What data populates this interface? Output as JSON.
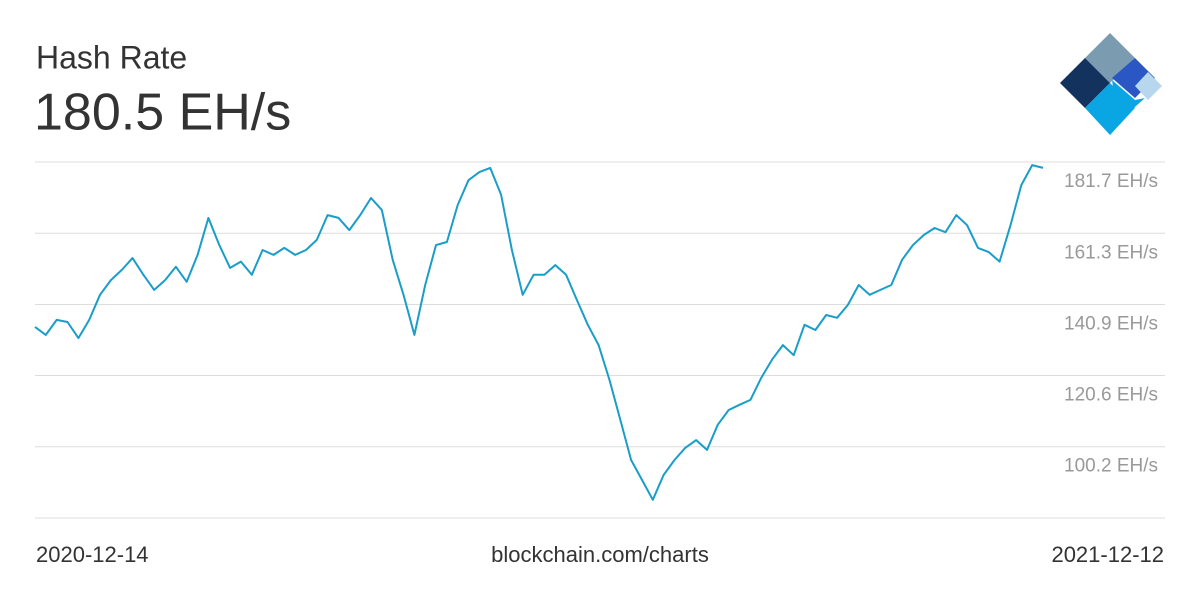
{
  "chart_data": {
    "type": "line",
    "title": "Hash Rate",
    "subtitle": "180.5 EH/s",
    "source": "blockchain.com/charts",
    "x_labels": [
      "2020-12-14",
      "2021-12-12"
    ],
    "series": [
      {
        "name": "Hash Rate",
        "color": "#1a9dc9",
        "values": [
          134.5,
          132.2,
          136.5,
          135.9,
          131.3,
          136.5,
          143.7,
          147.9,
          150.8,
          154.2,
          149.4,
          145.1,
          147.9,
          151.7,
          147.4,
          155.1,
          165.7,
          157.9,
          151.4,
          153.2,
          149.4,
          156.5,
          155.1,
          157.1,
          155.1,
          156.5,
          159.4,
          166.5,
          165.7,
          162.2,
          166.5,
          171.4,
          168.0,
          153.7,
          143.7,
          132.2,
          146.5,
          157.9,
          158.8,
          169.4,
          176.5,
          178.8,
          180.0,
          172.3,
          156.5,
          143.7,
          149.4,
          149.4,
          152.2,
          149.4,
          142.2,
          135.1,
          129.3,
          119.3,
          107.9,
          96.4,
          90.7,
          85.0,
          92.1,
          96.4,
          99.9,
          102.1,
          99.3,
          106.5,
          110.7,
          112.2,
          113.6,
          119.9,
          125.1,
          129.3,
          126.4,
          135.1,
          133.6,
          137.9,
          137.1,
          140.8,
          146.5,
          143.7,
          145.1,
          146.5,
          153.7,
          157.9,
          160.8,
          162.8,
          161.6,
          166.5,
          163.6,
          157.1,
          155.9,
          153.2,
          163.6,
          175.1,
          180.8,
          180.0
        ]
      }
    ],
    "ylim": [
      79.8,
      181.7
    ],
    "yticks": [
      {
        "value": 100.2,
        "label": "100.2 EH/s"
      },
      {
        "value": 120.6,
        "label": "120.6 EH/s"
      },
      {
        "value": 140.9,
        "label": "140.9 EH/s"
      },
      {
        "value": 161.3,
        "label": "161.3 EH/s"
      },
      {
        "value": 181.7,
        "label": "181.7 EH/s"
      }
    ],
    "grid": true
  }
}
